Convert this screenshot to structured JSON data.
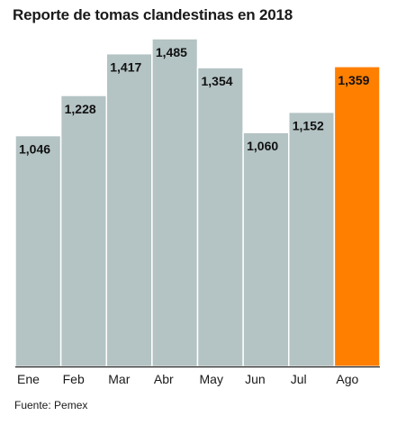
{
  "chart_data": {
    "type": "bar",
    "title": "Reporte de tomas clandestinas en 2018",
    "source": "Fuente: Pemex",
    "categories": [
      "Ene",
      "Feb",
      "Mar",
      "Abr",
      "May",
      "Jun",
      "Jul",
      "Ago"
    ],
    "values": [
      1046,
      1228,
      1417,
      1485,
      1354,
      1060,
      1152,
      1359
    ],
    "value_labels": [
      "1,046",
      "1,228",
      "1,417",
      "1,485",
      "1,354",
      "1,060",
      "1,152",
      "1,359"
    ],
    "highlight_index": 7,
    "ylim": [
      0,
      1485
    ],
    "grid": false,
    "colors": {
      "bar": "#b4c3c4",
      "highlight": "#ff7f00",
      "bar_stroke": "#ffffff",
      "axis": "#222222"
    }
  }
}
